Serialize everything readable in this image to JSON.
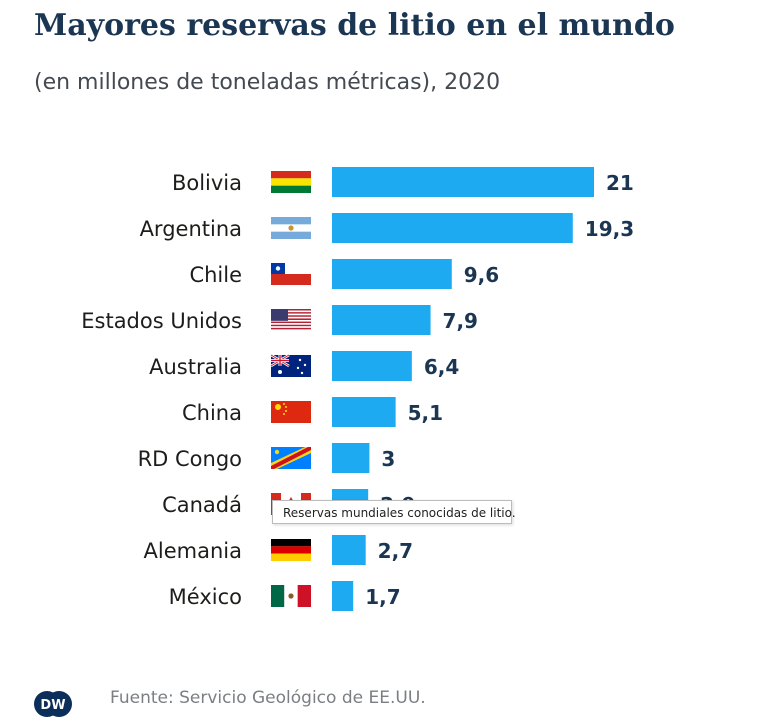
{
  "header": {
    "title": "Mayores reservas de litio en el mundo",
    "subtitle": "(en millones de toneladas métricas), 2020"
  },
  "tooltip": {
    "text": "Reservas mundiales conocidas de litio."
  },
  "footer": {
    "logo_text": "DW",
    "source": "Fuente: Servicio Geológico de EE.UU."
  },
  "colors": {
    "bar": "#1eaaf1",
    "title": "#1b3653",
    "value": "#1b3653"
  },
  "chart_data": {
    "type": "bar",
    "orientation": "horizontal",
    "title": "Mayores reservas de litio en el mundo",
    "subtitle": "(en millones de toneladas métricas), 2020",
    "categories": [
      "Bolivia",
      "Argentina",
      "Chile",
      "Estados Unidos",
      "Australia",
      "China",
      "RD Congo",
      "Canadá",
      "Alemania",
      "México"
    ],
    "values": [
      21,
      19.3,
      9.6,
      7.9,
      6.4,
      5.1,
      3,
      2.9,
      2.7,
      1.7
    ],
    "value_labels": [
      "21",
      "19,3",
      "9,6",
      "7,9",
      "6,4",
      "5,1",
      "3",
      "2,9",
      "2,7",
      "1,7"
    ],
    "flags": [
      "bolivia-flag-icon",
      "argentina-flag-icon",
      "chile-flag-icon",
      "usa-flag-icon",
      "australia-flag-icon",
      "china-flag-icon",
      "dr-congo-flag-icon",
      "canada-flag-icon",
      "germany-flag-icon",
      "mexico-flag-icon"
    ],
    "xlim": [
      0,
      21
    ],
    "grid": false,
    "legend": "none"
  }
}
